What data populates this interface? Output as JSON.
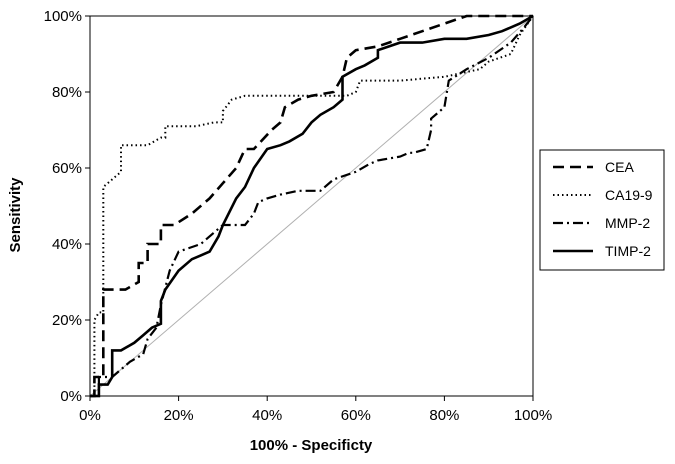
{
  "chart_data": {
    "type": "line",
    "title": "",
    "xlabel": "100% - Specificty",
    "ylabel": "Sensitivity",
    "xlim": [
      0,
      100
    ],
    "ylim": [
      0,
      100
    ],
    "x_ticks": [
      "0%",
      "20%",
      "40%",
      "60%",
      "80%",
      "100%"
    ],
    "y_ticks": [
      "0%",
      "20%",
      "40%",
      "60%",
      "80%",
      "100%"
    ],
    "grid": false,
    "legend_position": "right",
    "reference_line": {
      "name": "diagonal",
      "x": [
        0,
        100
      ],
      "y": [
        0,
        100
      ],
      "color": "#b0b0b0"
    },
    "series": [
      {
        "name": "CEA",
        "dash": "dashed",
        "x": [
          0,
          1,
          1,
          3,
          3,
          8,
          11,
          11,
          13,
          13,
          15,
          16,
          16,
          19,
          23,
          27,
          30,
          33,
          35,
          37,
          41,
          43,
          44,
          47,
          50,
          55,
          57,
          58,
          60,
          65,
          70,
          75,
          80,
          85,
          90,
          95,
          100
        ],
        "y": [
          0,
          0,
          5,
          5,
          28,
          28,
          30,
          35,
          35,
          40,
          40,
          40,
          45,
          45,
          48,
          52,
          56,
          60,
          65,
          65,
          70,
          72,
          76,
          78,
          79,
          80,
          84,
          89,
          91,
          92,
          94,
          96,
          98,
          100,
          100,
          100,
          100
        ]
      },
      {
        "name": "CA19-9",
        "dash": "dotted",
        "x": [
          0,
          1,
          1,
          2,
          3,
          3,
          5,
          6,
          7,
          7,
          13,
          16,
          17,
          17,
          22,
          24,
          28,
          30,
          30,
          32,
          35,
          40,
          50,
          55,
          58,
          60,
          61,
          63,
          70,
          80,
          88,
          90,
          95,
          97,
          100
        ],
        "y": [
          0,
          0,
          20,
          22,
          22,
          55,
          57,
          58,
          59,
          66,
          66,
          68,
          68,
          71,
          71,
          71,
          72,
          72,
          75,
          78,
          79,
          79,
          79,
          79,
          79,
          80,
          83,
          83,
          83,
          84,
          86,
          88,
          90,
          95,
          100
        ]
      },
      {
        "name": "MMP-2",
        "dash": "dashdot",
        "x": [
          0,
          2,
          2,
          5,
          9,
          12,
          13,
          15,
          16,
          18,
          20,
          25,
          28,
          30,
          35,
          37,
          38,
          40,
          43,
          47,
          52,
          55,
          60,
          63,
          65,
          70,
          72,
          73,
          76,
          77,
          77,
          79,
          80,
          81,
          85,
          90,
          95,
          98,
          100
        ],
        "y": [
          0,
          0,
          5,
          5,
          9,
          11,
          15,
          18,
          24,
          33,
          38,
          40,
          43,
          45,
          45,
          48,
          51,
          52,
          53,
          54,
          54,
          57,
          59,
          61,
          62,
          63,
          64,
          64,
          65,
          70,
          73,
          75,
          76,
          83,
          86,
          89,
          93,
          97,
          100
        ]
      },
      {
        "name": "TIMP-2",
        "dash": "solid",
        "x": [
          0,
          2,
          2,
          4,
          5,
          5,
          7,
          10,
          12,
          14,
          16,
          16,
          17,
          20,
          23,
          25,
          27,
          29,
          30,
          33,
          35,
          37,
          40,
          43,
          45,
          48,
          50,
          52,
          55,
          57,
          57,
          60,
          62,
          65,
          65,
          70,
          75,
          80,
          85,
          90,
          93,
          95,
          97,
          100
        ],
        "y": [
          0,
          0,
          3,
          3,
          5,
          12,
          12,
          14,
          16,
          18,
          19,
          25,
          28,
          33,
          36,
          37,
          38,
          42,
          45,
          52,
          55,
          60,
          65,
          66,
          67,
          69,
          72,
          74,
          76,
          78,
          84,
          86,
          87,
          89,
          91,
          93,
          93,
          94,
          94,
          95,
          96,
          97,
          98,
          100
        ]
      }
    ]
  }
}
